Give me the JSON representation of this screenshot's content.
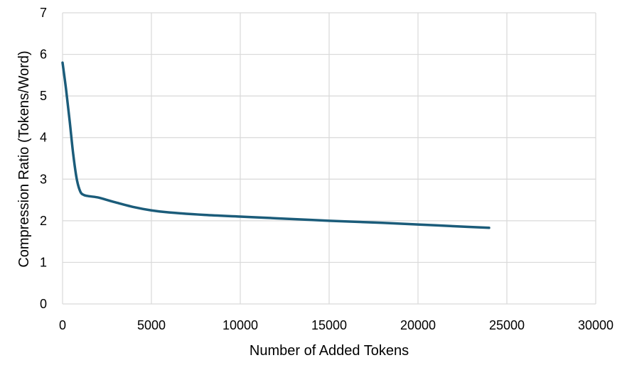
{
  "chart_data": {
    "type": "line",
    "title": "",
    "xlabel": "Number of Added Tokens",
    "ylabel": "Compression Ratio (Tokens/Word)",
    "xlim": [
      0,
      30000
    ],
    "ylim": [
      0,
      7
    ],
    "x_ticks": [
      0,
      5000,
      10000,
      15000,
      20000,
      25000,
      30000
    ],
    "y_ticks": [
      0,
      1,
      2,
      3,
      4,
      5,
      6,
      7
    ],
    "grid": true,
    "legend": "none",
    "series": [
      {
        "color": "#1b5c7a",
        "x": [
          0,
          200,
          400,
          600,
          800,
          1000,
          1200,
          1500,
          2000,
          2500,
          3000,
          4000,
          5000,
          6000,
          8000,
          10000,
          12000,
          15000,
          18000,
          20000,
          22000,
          24000
        ],
        "y": [
          5.8,
          5.15,
          4.4,
          3.6,
          3.0,
          2.7,
          2.62,
          2.59,
          2.56,
          2.5,
          2.44,
          2.33,
          2.25,
          2.2,
          2.14,
          2.1,
          2.06,
          2.0,
          1.95,
          1.91,
          1.87,
          1.83
        ]
      }
    ]
  }
}
